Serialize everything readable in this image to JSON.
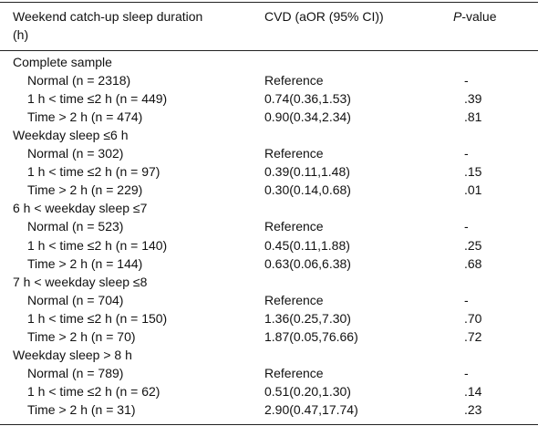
{
  "header": {
    "col1": "Weekend catch-up sleep duration (h)",
    "col2": "CVD (aOR (95% CI))",
    "col3_italic": "P",
    "col3_rest": "-value"
  },
  "groups": [
    {
      "label": "Complete sample",
      "rows": [
        [
          "Normal (n = 2318)",
          "Reference",
          "-"
        ],
        [
          "1 h < time ≤2 h (n = 449)",
          "0.74(0.36,1.53)",
          ".39"
        ],
        [
          "Time > 2 h (n = 474)",
          "0.90(0.34,2.34)",
          ".81"
        ]
      ]
    },
    {
      "label": "Weekday sleep ≤6 h",
      "rows": [
        [
          "Normal (n = 302)",
          "Reference",
          "-"
        ],
        [
          "1 h < time ≤2 h (n = 97)",
          "0.39(0.11,1.48)",
          ".15"
        ],
        [
          "Time > 2 h (n = 229)",
          "0.30(0.14,0.68)",
          ".01"
        ]
      ]
    },
    {
      "label": "6 h < weekday sleep ≤7",
      "rows": [
        [
          "Normal (n = 523)",
          "Reference",
          "-"
        ],
        [
          "1 h < time ≤2 h (n = 140)",
          "0.45(0.11,1.88)",
          ".25"
        ],
        [
          "Time > 2 h (n = 144)",
          "0.63(0.06,6.38)",
          ".68"
        ]
      ]
    },
    {
      "label": "7 h < weekday sleep ≤8",
      "rows": [
        [
          "Normal (n = 704)",
          "Reference",
          "-"
        ],
        [
          "1 h < time ≤2 h (n = 150)",
          "1.36(0.25,7.30)",
          ".70"
        ],
        [
          "Time > 2 h (n = 70)",
          "1.87(0.05,76.66)",
          ".72"
        ]
      ]
    },
    {
      "label": "Weekday sleep > 8 h",
      "rows": [
        [
          "Normal (n = 789)",
          "Reference",
          "-"
        ],
        [
          "1 h < time ≤2 h (n = 62)",
          "0.51(0.20,1.30)",
          ".14"
        ],
        [
          "Time > 2 h (n = 31)",
          "2.90(0.47,17.74)",
          ".23"
        ]
      ]
    }
  ]
}
